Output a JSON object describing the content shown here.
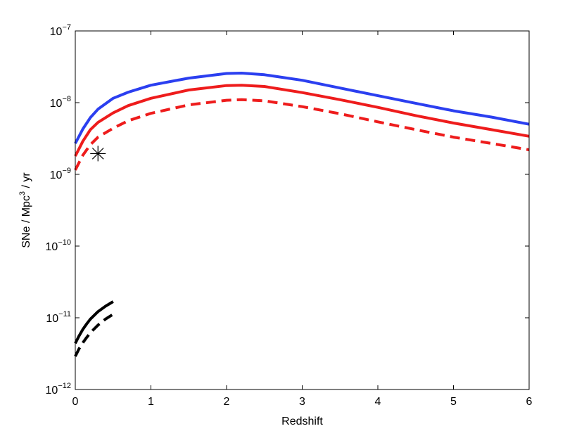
{
  "chart_data": {
    "type": "line",
    "xlabel": "Redshift",
    "ylabel": {
      "text_before": "SNe / Mpc",
      "superscript": "3",
      "text_after": " / yr"
    },
    "xlim": [
      0,
      6
    ],
    "ylim": [
      1e-12,
      1e-07
    ],
    "yscale": "log",
    "grid": false,
    "legend": "none",
    "x_ticks": [
      0,
      1,
      2,
      3,
      4,
      5,
      6
    ],
    "y_ticks": [
      {
        "value": 1e-12,
        "base": "10",
        "exp": "−12"
      },
      {
        "value": 1e-11,
        "base": "10",
        "exp": "−11"
      },
      {
        "value": 1e-10,
        "base": "10",
        "exp": "−10"
      },
      {
        "value": 1e-09,
        "base": "10",
        "exp": "−9"
      },
      {
        "value": 1e-08,
        "base": "10",
        "exp": "−8"
      },
      {
        "value": 1e-07,
        "base": "10",
        "exp": "−7"
      }
    ],
    "series": [
      {
        "color": "#2b3ff0",
        "style": "solid",
        "x": [
          0,
          0.1,
          0.2,
          0.3,
          0.5,
          0.7,
          1.0,
          1.5,
          2.0,
          2.2,
          2.5,
          3.0,
          3.5,
          4.0,
          4.5,
          5.0,
          5.5,
          6.0
        ],
        "y": [
          2.7e-09,
          4.3e-09,
          6.2e-09,
          8.1e-09,
          1.15e-08,
          1.4e-08,
          1.75e-08,
          2.2e-08,
          2.55e-08,
          2.58e-08,
          2.45e-08,
          2.05e-08,
          1.6e-08,
          1.25e-08,
          9.8e-09,
          7.7e-09,
          6.3e-09,
          5e-09
        ]
      },
      {
        "color": "#ee1c1c",
        "style": "solid",
        "x": [
          0,
          0.1,
          0.2,
          0.3,
          0.5,
          0.7,
          1.0,
          1.5,
          2.0,
          2.2,
          2.5,
          3.0,
          3.5,
          4.0,
          4.5,
          5.0,
          5.5,
          6.0
        ],
        "y": [
          1.8e-09,
          2.9e-09,
          4.2e-09,
          5.3e-09,
          7.2e-09,
          9.1e-09,
          1.15e-08,
          1.5e-08,
          1.73e-08,
          1.75e-08,
          1.68e-08,
          1.38e-08,
          1.1e-08,
          8.6e-09,
          6.6e-09,
          5.2e-09,
          4.2e-09,
          3.4e-09
        ]
      },
      {
        "color": "#ee1c1c",
        "style": "dashed",
        "x": [
          0,
          0.1,
          0.2,
          0.3,
          0.5,
          0.7,
          1.0,
          1.5,
          2.0,
          2.2,
          2.5,
          3.0,
          3.5,
          4.0,
          4.5,
          5.0,
          5.5,
          6.0
        ],
        "y": [
          1.15e-09,
          1.85e-09,
          2.6e-09,
          3.3e-09,
          4.4e-09,
          5.6e-09,
          7.1e-09,
          9.3e-09,
          1.08e-08,
          1.1e-08,
          1.06e-08,
          8.8e-09,
          7e-09,
          5.4e-09,
          4.2e-09,
          3.3e-09,
          2.7e-09,
          2.2e-09
        ]
      },
      {
        "color": "#000000",
        "style": "solid",
        "x": [
          0,
          0.05,
          0.1,
          0.15,
          0.2,
          0.3,
          0.4,
          0.5
        ],
        "y": [
          4.4e-12,
          5.6e-12,
          6.9e-12,
          8.2e-12,
          9.6e-12,
          1.22e-11,
          1.45e-11,
          1.68e-11
        ]
      },
      {
        "color": "#000000",
        "style": "dashed",
        "x": [
          0,
          0.05,
          0.1,
          0.15,
          0.2,
          0.3,
          0.4,
          0.5
        ],
        "y": [
          2.9e-12,
          3.7e-12,
          4.5e-12,
          5.3e-12,
          6.2e-12,
          7.9e-12,
          9.6e-12,
          1.12e-11
        ]
      }
    ],
    "markers": [
      {
        "x": 0.3,
        "y": 1.95e-09,
        "symbol": "asterisk",
        "color": "#000000"
      }
    ]
  }
}
